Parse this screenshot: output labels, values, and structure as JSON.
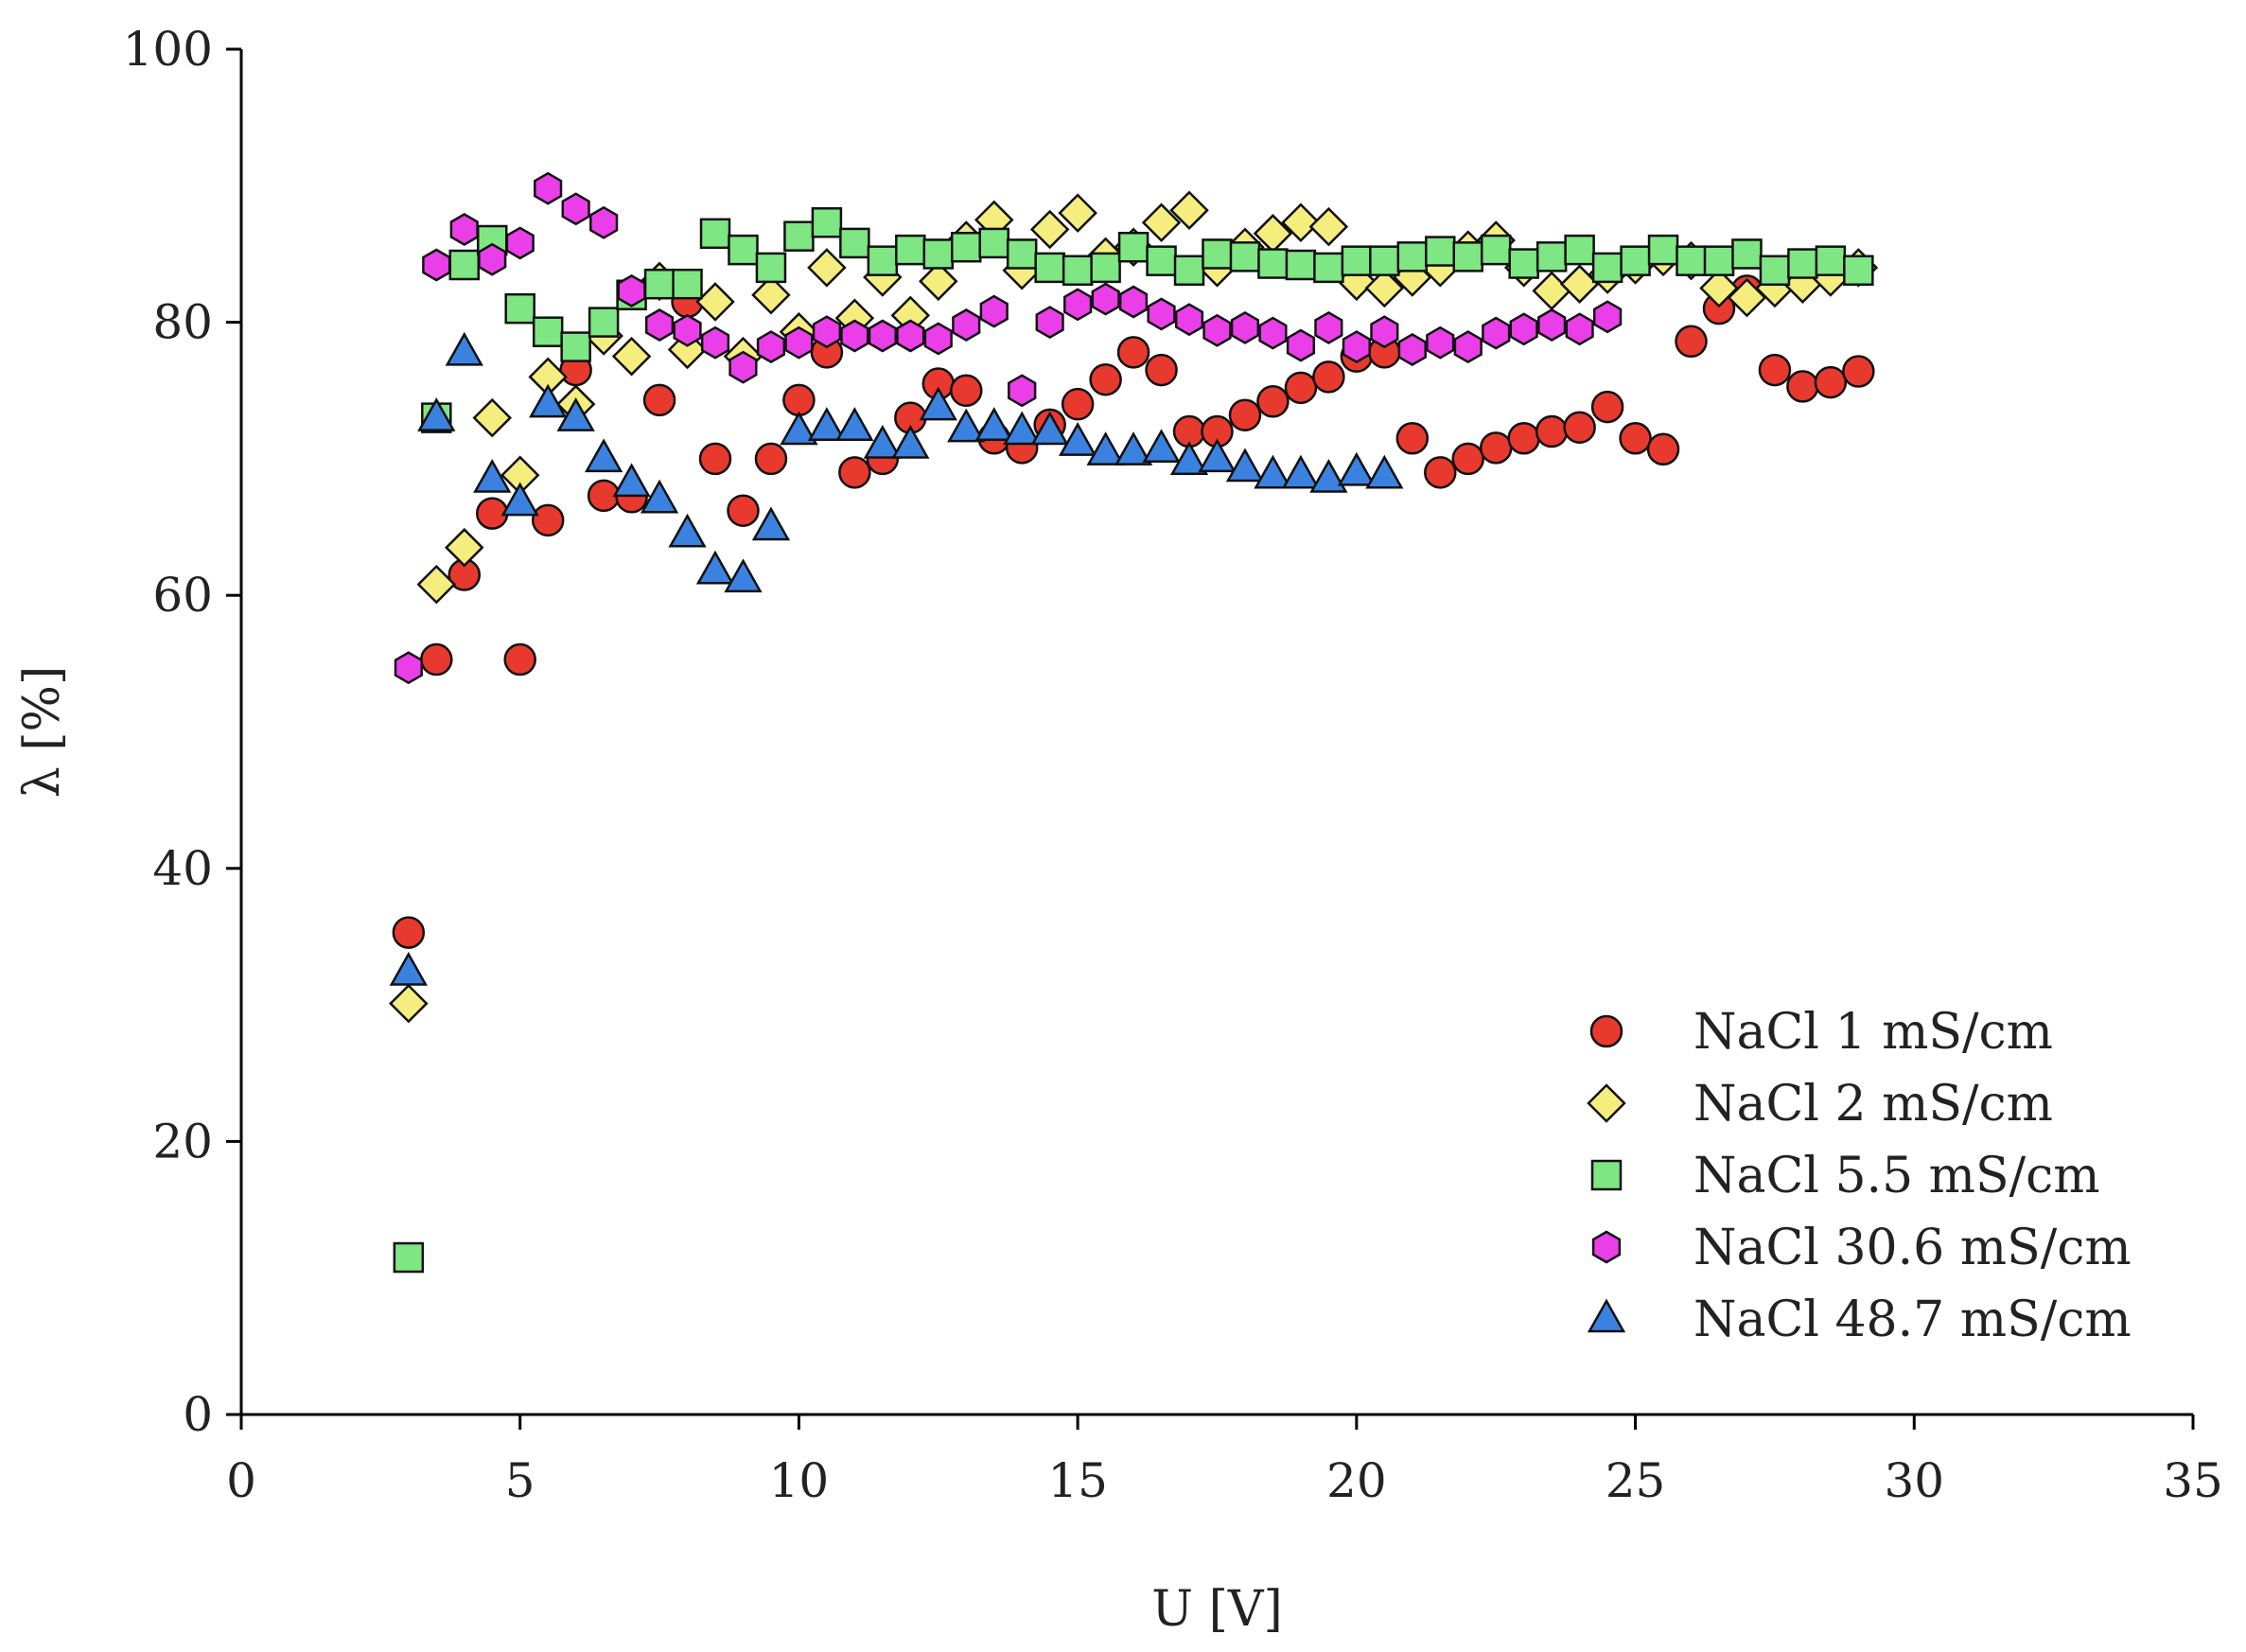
{
  "chart_data": {
    "type": "scatter",
    "title": "",
    "xlabel": "U [V]",
    "ylabel": "λ [%]",
    "xlim": [
      0,
      35
    ],
    "ylim": [
      0,
      100
    ],
    "xticks": [
      0,
      5,
      10,
      15,
      20,
      25,
      30,
      35
    ],
    "yticks": [
      0,
      20,
      40,
      60,
      80,
      100
    ],
    "grid": false,
    "legend_position": "bottom-right",
    "series": [
      {
        "name": "NaCl 1 mS/cm",
        "marker": "circle",
        "color": "#e8392e",
        "points": [
          [
            3,
            35.3
          ],
          [
            3.5,
            55.3
          ],
          [
            4,
            61.5
          ],
          [
            4.5,
            66
          ],
          [
            5,
            55.3
          ],
          [
            5.5,
            65.5
          ],
          [
            6,
            76.5
          ],
          [
            6.5,
            67.3
          ],
          [
            7,
            67.2
          ],
          [
            7.5,
            74.3
          ],
          [
            8,
            81.5
          ],
          [
            8.5,
            70
          ],
          [
            9,
            66.2
          ],
          [
            9.5,
            70
          ],
          [
            10,
            74.3
          ],
          [
            10.5,
            77.8
          ],
          [
            11,
            69
          ],
          [
            11.5,
            70
          ],
          [
            12,
            73
          ],
          [
            12.5,
            75.5
          ],
          [
            13,
            75
          ],
          [
            13.5,
            71.5
          ],
          [
            14,
            70.8
          ],
          [
            14.5,
            72.5
          ],
          [
            15,
            74
          ],
          [
            15.5,
            75.8
          ],
          [
            16,
            77.8
          ],
          [
            16.5,
            76.5
          ],
          [
            17,
            72
          ],
          [
            17.5,
            72
          ],
          [
            18,
            73.2
          ],
          [
            18.5,
            74.2
          ],
          [
            19,
            75.2
          ],
          [
            19.5,
            76
          ],
          [
            20,
            77.5
          ],
          [
            20.5,
            77.8
          ],
          [
            21,
            71.5
          ],
          [
            21.5,
            69
          ],
          [
            22,
            70
          ],
          [
            22.5,
            70.8
          ],
          [
            23,
            71.5
          ],
          [
            23.5,
            72
          ],
          [
            24,
            72.3
          ],
          [
            24.5,
            73.8
          ],
          [
            25,
            71.5
          ],
          [
            25.5,
            70.7
          ],
          [
            26,
            78.6
          ],
          [
            26.5,
            81
          ],
          [
            27,
            82.3
          ],
          [
            27.5,
            76.5
          ],
          [
            28,
            75.3
          ],
          [
            28.5,
            75.6
          ],
          [
            29,
            76.4
          ]
        ]
      },
      {
        "name": "NaCl 2 mS/cm",
        "marker": "diamond",
        "color": "#f5ee7e",
        "points": [
          [
            3,
            30.1
          ],
          [
            3.5,
            60.8
          ],
          [
            4,
            63.5
          ],
          [
            4.5,
            73
          ],
          [
            5,
            68.8
          ],
          [
            5.5,
            76
          ],
          [
            6,
            74
          ],
          [
            6.5,
            79
          ],
          [
            7,
            77.5
          ],
          [
            7.5,
            83
          ],
          [
            8,
            78
          ],
          [
            8.5,
            81.5
          ],
          [
            9,
            77.5
          ],
          [
            9.5,
            82
          ],
          [
            10,
            79.3
          ],
          [
            10.5,
            84
          ],
          [
            11,
            80.3
          ],
          [
            11.5,
            83.3
          ],
          [
            12,
            80.5
          ],
          [
            12.5,
            83
          ],
          [
            13,
            86
          ],
          [
            13.5,
            87.5
          ],
          [
            14,
            83.8
          ],
          [
            14.5,
            86.8
          ],
          [
            15,
            88
          ],
          [
            15.5,
            84.8
          ],
          [
            16,
            85.5
          ],
          [
            16.5,
            87.3
          ],
          [
            17,
            88.2
          ],
          [
            17.5,
            84
          ],
          [
            18,
            85.5
          ],
          [
            18.5,
            86.5
          ],
          [
            19,
            87.3
          ],
          [
            19.5,
            87
          ],
          [
            20,
            83
          ],
          [
            20.5,
            82.5
          ],
          [
            21,
            83.3
          ],
          [
            21.5,
            84
          ],
          [
            22,
            85.3
          ],
          [
            22.5,
            86
          ],
          [
            23,
            84
          ],
          [
            23.5,
            82.3
          ],
          [
            24,
            82.8
          ],
          [
            24.5,
            83.5
          ],
          [
            25,
            84.2
          ],
          [
            25.5,
            84.8
          ],
          [
            26,
            84.5
          ],
          [
            26.5,
            82.5
          ],
          [
            27,
            81.8
          ],
          [
            27.5,
            82.5
          ],
          [
            28,
            82.8
          ],
          [
            28.5,
            83.3
          ],
          [
            29,
            84
          ]
        ]
      },
      {
        "name": "NaCl 5.5 mS/cm",
        "marker": "square",
        "color": "#7ee682",
        "points": [
          [
            3,
            11.5
          ],
          [
            3.5,
            73
          ],
          [
            4,
            84.2
          ],
          [
            4.5,
            86
          ],
          [
            5,
            81
          ],
          [
            5.5,
            79.3
          ],
          [
            6,
            78.2
          ],
          [
            6.5,
            80
          ],
          [
            7,
            82
          ],
          [
            7.5,
            82.8
          ],
          [
            8,
            82.8
          ],
          [
            8.5,
            86.5
          ],
          [
            9,
            85.3
          ],
          [
            9.5,
            84
          ],
          [
            10,
            86.3
          ],
          [
            10.5,
            87.3
          ],
          [
            11,
            85.8
          ],
          [
            11.5,
            84.5
          ],
          [
            12,
            85.3
          ],
          [
            12.5,
            85
          ],
          [
            13,
            85.5
          ],
          [
            13.5,
            85.8
          ],
          [
            14,
            85
          ],
          [
            14.5,
            84
          ],
          [
            15,
            83.8
          ],
          [
            15.5,
            84
          ],
          [
            16,
            85.5
          ],
          [
            16.5,
            84.5
          ],
          [
            17,
            83.8
          ],
          [
            17.5,
            85
          ],
          [
            18,
            84.8
          ],
          [
            18.5,
            84.3
          ],
          [
            19,
            84.2
          ],
          [
            19.5,
            84
          ],
          [
            20,
            84.5
          ],
          [
            20.5,
            84.5
          ],
          [
            21,
            84.8
          ],
          [
            21.5,
            85.2
          ],
          [
            22,
            84.8
          ],
          [
            22.5,
            85.3
          ],
          [
            23,
            84.3
          ],
          [
            23.5,
            84.8
          ],
          [
            24,
            85.3
          ],
          [
            24.5,
            84
          ],
          [
            25,
            84.5
          ],
          [
            25.5,
            85.3
          ],
          [
            26,
            84.5
          ],
          [
            26.5,
            84.5
          ],
          [
            27,
            85
          ],
          [
            27.5,
            83.8
          ],
          [
            28,
            84.3
          ],
          [
            28.5,
            84.5
          ],
          [
            29,
            83.8
          ]
        ]
      },
      {
        "name": "NaCl 30.6 mS/cm",
        "marker": "hexagon",
        "color": "#ea3fe8",
        "points": [
          [
            3,
            54.7
          ],
          [
            3.5,
            84.2
          ],
          [
            4,
            86.8
          ],
          [
            4.5,
            84.6
          ],
          [
            5,
            85.8
          ],
          [
            5.5,
            89.8
          ],
          [
            6,
            88.3
          ],
          [
            6.5,
            87.3
          ],
          [
            7,
            82.3
          ],
          [
            7.5,
            79.8
          ],
          [
            8,
            79.4
          ],
          [
            8.5,
            78.5
          ],
          [
            9,
            76.7
          ],
          [
            9.5,
            78.2
          ],
          [
            10,
            78.5
          ],
          [
            10.5,
            79.3
          ],
          [
            11,
            79
          ],
          [
            11.5,
            79
          ],
          [
            12,
            79
          ],
          [
            12.5,
            78.8
          ],
          [
            13,
            79.8
          ],
          [
            13.5,
            80.8
          ],
          [
            14,
            75
          ],
          [
            14.5,
            80
          ],
          [
            15,
            81.3
          ],
          [
            15.5,
            81.7
          ],
          [
            16,
            81.5
          ],
          [
            16.5,
            80.6
          ],
          [
            17,
            80.2
          ],
          [
            17.5,
            79.4
          ],
          [
            18,
            79.6
          ],
          [
            18.5,
            79.2
          ],
          [
            19,
            78.3
          ],
          [
            19.5,
            79.6
          ],
          [
            20,
            78.2
          ],
          [
            20.5,
            79.3
          ],
          [
            21,
            78
          ],
          [
            21.5,
            78.5
          ],
          [
            22,
            78.2
          ],
          [
            22.5,
            79.2
          ],
          [
            23,
            79.5
          ],
          [
            23.5,
            79.8
          ],
          [
            24,
            79.5
          ],
          [
            24.5,
            80.4
          ]
        ]
      },
      {
        "name": "NaCl 48.7 mS/cm",
        "marker": "triangle",
        "color": "#3b82e0",
        "points": [
          [
            3,
            32.4
          ],
          [
            3.5,
            73
          ],
          [
            4,
            77.8
          ],
          [
            4.5,
            68.5
          ],
          [
            5,
            66.8
          ],
          [
            5.5,
            74
          ],
          [
            6,
            73
          ],
          [
            6.5,
            70
          ],
          [
            7,
            68.2
          ],
          [
            7.5,
            67
          ],
          [
            8,
            64.5
          ],
          [
            8.5,
            61.8
          ],
          [
            9,
            61.2
          ],
          [
            9.5,
            65
          ],
          [
            10,
            72
          ],
          [
            10.5,
            72.3
          ],
          [
            11,
            72.3
          ],
          [
            11.5,
            71
          ],
          [
            12,
            71
          ],
          [
            12.5,
            73.8
          ],
          [
            13,
            72.2
          ],
          [
            13.5,
            72.3
          ],
          [
            14,
            72
          ],
          [
            14.5,
            72
          ],
          [
            15,
            71.2
          ],
          [
            15.5,
            70.5
          ],
          [
            16,
            70.5
          ],
          [
            16.5,
            70.7
          ],
          [
            17,
            69.8
          ],
          [
            17.5,
            70
          ],
          [
            18,
            69.3
          ],
          [
            18.5,
            68.8
          ],
          [
            19,
            68.8
          ],
          [
            19.5,
            68.5
          ],
          [
            20,
            69
          ],
          [
            20.5,
            68.8
          ]
        ]
      }
    ]
  }
}
